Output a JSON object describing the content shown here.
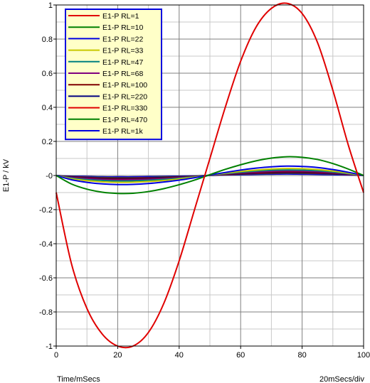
{
  "chart_data": {
    "type": "line",
    "title": "",
    "xlabel": "Time/mSecs",
    "ylabel": "E1-P / kV",
    "xscale_label": "20mSecs/div",
    "xlim": [
      0,
      100
    ],
    "ylim": [
      -1,
      1
    ],
    "x_ticks": [
      0,
      20,
      40,
      60,
      80,
      100
    ],
    "x_tick_labels": [
      "0",
      "20",
      "40",
      "60",
      "80",
      "100"
    ],
    "y_ticks": [
      1,
      0.8,
      0.6,
      0.4,
      0.2,
      0,
      -0.2,
      -0.4,
      -0.6,
      -0.8,
      -1
    ],
    "y_tick_labels": [
      "1",
      "0.8",
      "0.6",
      "0.4",
      "0.2",
      "-0",
      "-0.2",
      "-0.4",
      "-0.6",
      "-0.8",
      "-1"
    ],
    "grid": true,
    "legend_position": "top-left",
    "x": [
      0,
      5,
      10,
      15,
      20,
      25,
      30,
      35,
      40,
      45,
      50,
      55,
      60,
      65,
      70,
      75,
      80,
      85,
      90,
      95,
      100
    ],
    "series": [
      {
        "name": "E1-P RL=1",
        "color": "#e00000",
        "values": [
          -0.1,
          -0.52,
          -0.78,
          -0.93,
          -1.0,
          -1.0,
          -0.92,
          -0.75,
          -0.5,
          -0.2,
          0.1,
          0.4,
          0.67,
          0.87,
          0.98,
          1.01,
          0.95,
          0.78,
          0.5,
          0.18,
          -0.1
        ]
      },
      {
        "name": "E1-P RL=10",
        "color": "#008000",
        "values": [
          0.0,
          -0.05,
          -0.08,
          -0.098,
          -0.105,
          -0.104,
          -0.094,
          -0.077,
          -0.054,
          -0.027,
          0.005,
          0.036,
          0.063,
          0.086,
          0.102,
          0.11,
          0.107,
          0.094,
          0.07,
          0.038,
          0.0
        ]
      },
      {
        "name": "E1-P RL=22",
        "color": "#0000e0",
        "values": [
          0.0,
          -0.025,
          -0.04,
          -0.049,
          -0.053,
          -0.052,
          -0.047,
          -0.038,
          -0.027,
          -0.013,
          0.003,
          0.018,
          0.032,
          0.043,
          0.051,
          0.055,
          0.053,
          0.047,
          0.035,
          0.019,
          0.0
        ]
      },
      {
        "name": "E1-P RL=33",
        "color": "#c8c800",
        "values": [
          0.0,
          -0.019,
          -0.03,
          -0.037,
          -0.04,
          -0.039,
          -0.035,
          -0.029,
          -0.02,
          -0.01,
          0.002,
          0.014,
          0.024,
          0.032,
          0.038,
          0.041,
          0.04,
          0.035,
          0.026,
          0.014,
          0.0
        ]
      },
      {
        "name": "E1-P RL=47",
        "color": "#008080",
        "values": [
          0.0,
          -0.015,
          -0.024,
          -0.029,
          -0.032,
          -0.031,
          -0.028,
          -0.023,
          -0.016,
          -0.008,
          0.002,
          0.011,
          0.019,
          0.026,
          0.031,
          0.033,
          0.032,
          0.028,
          0.021,
          0.011,
          0.0
        ]
      },
      {
        "name": "E1-P RL=68",
        "color": "#800080",
        "values": [
          0.0,
          -0.012,
          -0.019,
          -0.024,
          -0.026,
          -0.025,
          -0.023,
          -0.019,
          -0.013,
          -0.007,
          0.001,
          0.009,
          0.016,
          0.021,
          0.025,
          0.027,
          0.026,
          0.023,
          0.017,
          0.009,
          0.0
        ]
      },
      {
        "name": "E1-P RL=100",
        "color": "#800000",
        "values": [
          0.0,
          -0.01,
          -0.016,
          -0.02,
          -0.021,
          -0.021,
          -0.019,
          -0.015,
          -0.011,
          -0.005,
          0.001,
          0.007,
          0.013,
          0.017,
          0.02,
          0.022,
          0.021,
          0.019,
          0.014,
          0.008,
          0.0
        ]
      },
      {
        "name": "E1-P RL=220",
        "color": "#000080",
        "values": [
          0.0,
          -0.008,
          -0.013,
          -0.016,
          -0.017,
          -0.017,
          -0.015,
          -0.012,
          -0.009,
          -0.004,
          0.001,
          0.006,
          0.01,
          0.014,
          0.016,
          0.018,
          0.017,
          0.015,
          0.011,
          0.006,
          0.0
        ]
      },
      {
        "name": "E1-P RL=330",
        "color": "#e00000",
        "values": [
          0.0,
          -0.007,
          -0.011,
          -0.014,
          -0.015,
          -0.015,
          -0.013,
          -0.011,
          -0.008,
          -0.004,
          0.001,
          0.005,
          0.009,
          0.012,
          0.014,
          0.016,
          0.015,
          0.013,
          0.01,
          0.005,
          0.0
        ]
      },
      {
        "name": "E1-P RL=470",
        "color": "#008000",
        "values": [
          0.0,
          -0.006,
          -0.01,
          -0.012,
          -0.013,
          -0.013,
          -0.012,
          -0.009,
          -0.007,
          -0.003,
          0.001,
          0.004,
          0.008,
          0.011,
          0.012,
          0.014,
          0.013,
          0.012,
          0.009,
          0.005,
          0.0
        ]
      },
      {
        "name": "E1-P RL=1k",
        "color": "#0000e0",
        "values": [
          0.0,
          -0.004,
          -0.006,
          -0.008,
          -0.008,
          -0.008,
          -0.007,
          -0.006,
          -0.004,
          -0.002,
          0.0,
          0.003,
          0.005,
          0.007,
          0.008,
          0.009,
          0.008,
          0.007,
          0.005,
          0.003,
          0.0
        ]
      }
    ]
  }
}
